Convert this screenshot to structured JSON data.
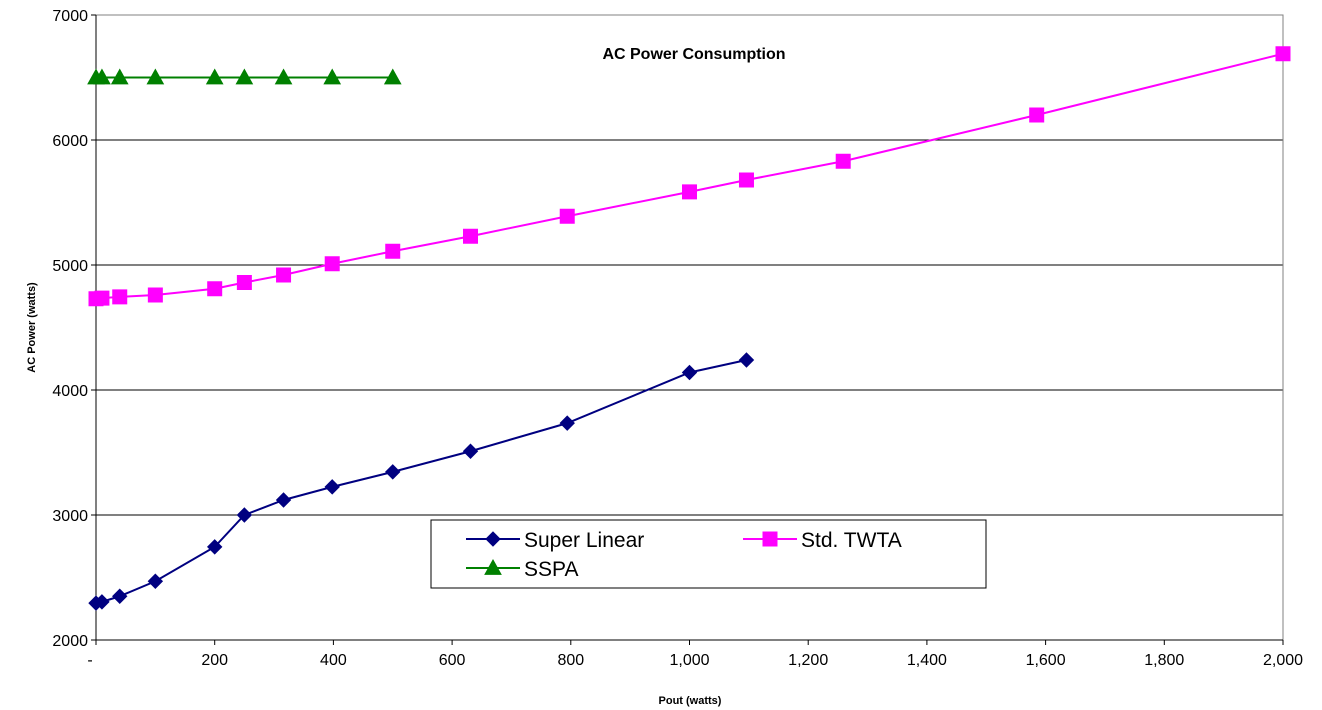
{
  "chart_data": {
    "type": "line",
    "title": "AC Power Consumption",
    "xlabel": "Pout (watts)",
    "ylabel": "AC Power (watts)",
    "xlim": [
      0,
      2000
    ],
    "ylim": [
      2000,
      7000
    ],
    "x_ticks": [
      0,
      200,
      400,
      600,
      800,
      1000,
      1200,
      1400,
      1600,
      1800,
      2000
    ],
    "x_tick_labels": [
      "-",
      "200",
      "400",
      "600",
      "800",
      "1,000",
      "1,200",
      "1,400",
      "1,600",
      "1,800",
      "2,000"
    ],
    "y_ticks": [
      2000,
      3000,
      4000,
      5000,
      6000,
      7000
    ],
    "y_tick_labels": [
      "2000",
      "3000",
      "4000",
      "5000",
      "6000",
      "7000"
    ],
    "grid": "horizontal",
    "legend_position": "lower-center",
    "series": [
      {
        "name": "Super Linear",
        "color": "#000080",
        "marker": "diamond",
        "points": [
          [
            0,
            2295
          ],
          [
            10,
            2305
          ],
          [
            40,
            2350
          ],
          [
            100,
            2470
          ],
          [
            200,
            2745
          ],
          [
            250,
            3000
          ],
          [
            316,
            3120
          ],
          [
            398,
            3225
          ],
          [
            500,
            3345
          ],
          [
            631,
            3510
          ],
          [
            794,
            3735
          ],
          [
            1000,
            4140
          ],
          [
            1096,
            4240
          ]
        ]
      },
      {
        "name": "Std. TWTA",
        "color": "#ff00ff",
        "marker": "square",
        "points": [
          [
            0,
            4730
          ],
          [
            10,
            4735
          ],
          [
            40,
            4745
          ],
          [
            100,
            4760
          ],
          [
            200,
            4810
          ],
          [
            250,
            4860
          ],
          [
            316,
            4920
          ],
          [
            398,
            5010
          ],
          [
            500,
            5110
          ],
          [
            631,
            5230
          ],
          [
            794,
            5390
          ],
          [
            1000,
            5585
          ],
          [
            1096,
            5680
          ],
          [
            1259,
            5830
          ],
          [
            1585,
            6200
          ],
          [
            2000,
            6690
          ]
        ]
      },
      {
        "name": "SSPA",
        "color": "#008000",
        "marker": "triangle",
        "points": [
          [
            0,
            6500
          ],
          [
            10,
            6500
          ],
          [
            40,
            6500
          ],
          [
            100,
            6500
          ],
          [
            200,
            6500
          ],
          [
            250,
            6500
          ],
          [
            316,
            6500
          ],
          [
            398,
            6500
          ],
          [
            500,
            6500
          ]
        ]
      }
    ]
  }
}
